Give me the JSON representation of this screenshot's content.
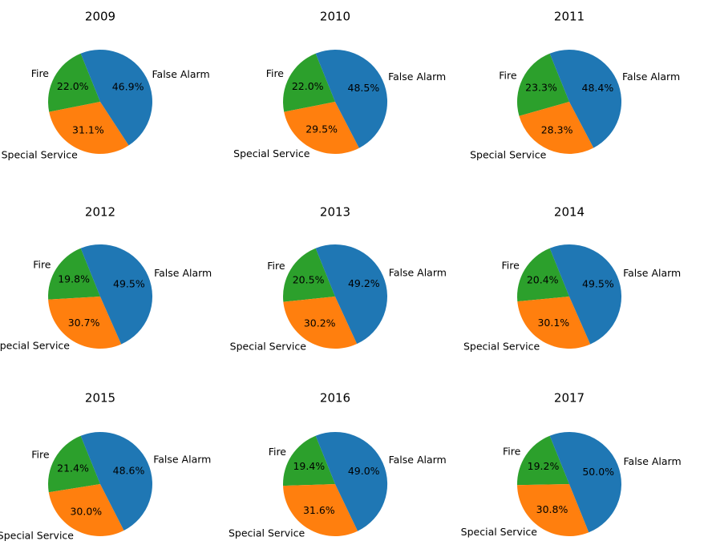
{
  "chart_data": [
    {
      "type": "pie",
      "title": "2009",
      "labels": [
        "Fire",
        "Special Service",
        "False Alarm"
      ],
      "values": [
        22.0,
        31.1,
        46.9
      ],
      "value_labels": [
        "22.0%",
        "31.1%",
        "46.9%"
      ],
      "colors": [
        "#2ca02c",
        "#ff7f0e",
        "#1f77b4"
      ]
    },
    {
      "type": "pie",
      "title": "2010",
      "labels": [
        "Fire",
        "Special Service",
        "False Alarm"
      ],
      "values": [
        22.0,
        29.5,
        48.5
      ],
      "value_labels": [
        "22.0%",
        "29.5%",
        "48.5%"
      ],
      "colors": [
        "#2ca02c",
        "#ff7f0e",
        "#1f77b4"
      ]
    },
    {
      "type": "pie",
      "title": "2011",
      "labels": [
        "Fire",
        "Special Service",
        "False Alarm"
      ],
      "values": [
        23.3,
        28.3,
        48.4
      ],
      "value_labels": [
        "23.3%",
        "28.3%",
        "48.4%"
      ],
      "colors": [
        "#2ca02c",
        "#ff7f0e",
        "#1f77b4"
      ]
    },
    {
      "type": "pie",
      "title": "2012",
      "labels": [
        "Fire",
        "Special Service",
        "False Alarm"
      ],
      "values": [
        19.8,
        30.7,
        49.5
      ],
      "value_labels": [
        "19.8%",
        "30.7%",
        "49.5%"
      ],
      "colors": [
        "#2ca02c",
        "#ff7f0e",
        "#1f77b4"
      ]
    },
    {
      "type": "pie",
      "title": "2013",
      "labels": [
        "Fire",
        "Special Service",
        "False Alarm"
      ],
      "values": [
        20.5,
        30.2,
        49.2
      ],
      "value_labels": [
        "20.5%",
        "30.2%",
        "49.2%"
      ],
      "colors": [
        "#2ca02c",
        "#ff7f0e",
        "#1f77b4"
      ]
    },
    {
      "type": "pie",
      "title": "2014",
      "labels": [
        "Fire",
        "Special Service",
        "False Alarm"
      ],
      "values": [
        20.4,
        30.1,
        49.5
      ],
      "value_labels": [
        "20.4%",
        "30.1%",
        "49.5%"
      ],
      "colors": [
        "#2ca02c",
        "#ff7f0e",
        "#1f77b4"
      ]
    },
    {
      "type": "pie",
      "title": "2015",
      "labels": [
        "Fire",
        "Special Service",
        "False Alarm"
      ],
      "values": [
        21.4,
        30.0,
        48.6
      ],
      "value_labels": [
        "21.4%",
        "30.0%",
        "48.6%"
      ],
      "colors": [
        "#2ca02c",
        "#ff7f0e",
        "#1f77b4"
      ]
    },
    {
      "type": "pie",
      "title": "2016",
      "labels": [
        "Fire",
        "Special Service",
        "False Alarm"
      ],
      "values": [
        19.4,
        31.6,
        49.0
      ],
      "value_labels": [
        "19.4%",
        "31.6%",
        "49.0%"
      ],
      "colors": [
        "#2ca02c",
        "#ff7f0e",
        "#1f77b4"
      ]
    },
    {
      "type": "pie",
      "title": "2017",
      "labels": [
        "Fire",
        "Special Service",
        "False Alarm"
      ],
      "values": [
        19.2,
        30.8,
        50.0
      ],
      "value_labels": [
        "19.2%",
        "30.8%",
        "50.0%"
      ],
      "colors": [
        "#2ca02c",
        "#ff7f0e",
        "#1f77b4"
      ]
    }
  ]
}
